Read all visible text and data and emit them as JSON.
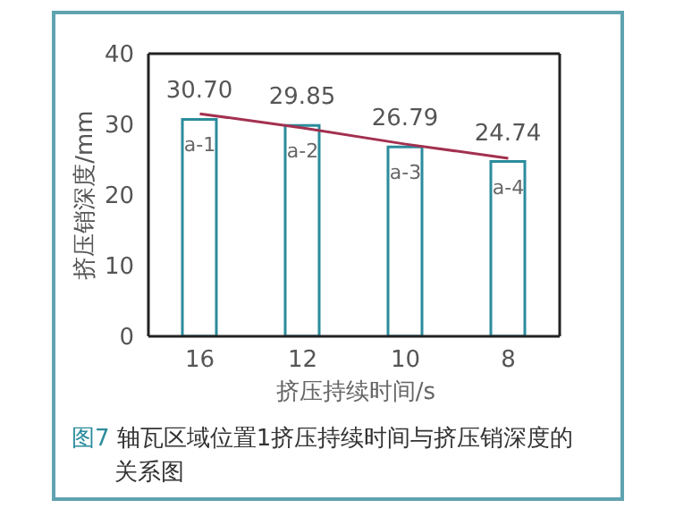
{
  "chart_data": {
    "type": "bar",
    "title": "图7 轴瓦区域位置1挤压持续时间与挤压销深度的关系图",
    "xlabel": "挤压持续时间/s",
    "ylabel": "挤压销深度/mm",
    "categories": [
      "16",
      "12",
      "10",
      "8"
    ],
    "series": [
      {
        "color": "#2b8c9c",
        "values": [
          30.7,
          29.85,
          26.79,
          24.74
        ],
        "value_labels": [
          "30.70",
          "29.85",
          "26.79",
          "24.74"
        ]
      },
      {
        "type": "line",
        "color": "#a3304f",
        "values": [
          31.5,
          29.5,
          27.2,
          25.2
        ]
      }
    ],
    "annotations": [
      {
        "text": "a-1",
        "x": "16",
        "y": 30.7
      },
      {
        "text": "a-2",
        "x": "12",
        "y": 29.85
      },
      {
        "text": "a-3",
        "x": "10",
        "y": 26.79
      },
      {
        "text": "a-4",
        "x": "8",
        "y": 24.74
      }
    ],
    "ylim": [
      0,
      40
    ],
    "yticks": [
      0,
      10,
      20,
      30,
      40
    ],
    "grid": false,
    "legend": false
  }
}
